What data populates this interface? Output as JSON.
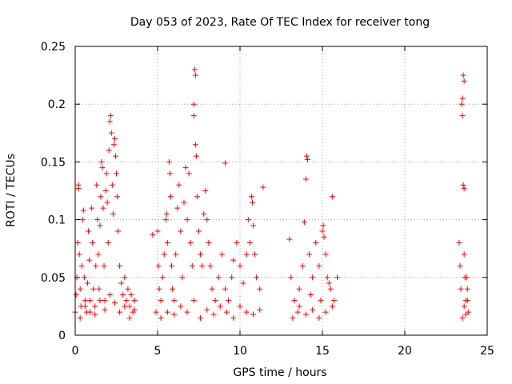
{
  "chart_data": {
    "type": "scatter",
    "title": "Day 053 of 2023, Rate Of TEC Index for receiver tong",
    "xlabel": "GPS time / hours",
    "ylabel": "ROTI / TECUs",
    "xlim": [
      0,
      25
    ],
    "ylim": [
      0,
      0.25
    ],
    "xticks": [
      "0",
      "5",
      "10",
      "15",
      "20",
      "25"
    ],
    "yticks": [
      "0",
      "0.05",
      "0.1",
      "0.15",
      "0.2",
      "0.25"
    ],
    "grid": true,
    "marker": "+",
    "color": "#ff0000",
    "points": [
      [
        0.0,
        0.02
      ],
      [
        0.05,
        0.035
      ],
      [
        0.1,
        0.05
      ],
      [
        0.15,
        0.08
      ],
      [
        0.2,
        0.13
      ],
      [
        0.2,
        0.127
      ],
      [
        0.25,
        0.07
      ],
      [
        0.3,
        0.04
      ],
      [
        0.35,
        0.025
      ],
      [
        0.4,
        0.06
      ],
      [
        0.45,
        0.1
      ],
      [
        0.5,
        0.108
      ],
      [
        0.55,
        0.05
      ],
      [
        0.6,
        0.03
      ],
      [
        0.7,
        0.02
      ],
      [
        0.75,
        0.045
      ],
      [
        0.8,
        0.09
      ],
      [
        0.85,
        0.065
      ],
      [
        0.9,
        0.03
      ],
      [
        1.0,
        0.11
      ],
      [
        1.05,
        0.08
      ],
      [
        1.1,
        0.04
      ],
      [
        1.2,
        0.025
      ],
      [
        1.25,
        0.06
      ],
      [
        1.3,
        0.13
      ],
      [
        1.35,
        0.1
      ],
      [
        1.4,
        0.07
      ],
      [
        1.45,
        0.04
      ],
      [
        1.5,
        0.095
      ],
      [
        1.55,
        0.12
      ],
      [
        1.6,
        0.15
      ],
      [
        1.65,
        0.145
      ],
      [
        1.7,
        0.11
      ],
      [
        1.75,
        0.06
      ],
      [
        1.8,
        0.03
      ],
      [
        1.85,
        0.125
      ],
      [
        1.9,
        0.14
      ],
      [
        1.95,
        0.115
      ],
      [
        2.0,
        0.08
      ],
      [
        2.05,
        0.16
      ],
      [
        2.1,
        0.185
      ],
      [
        2.15,
        0.19
      ],
      [
        2.2,
        0.175
      ],
      [
        2.25,
        0.13
      ],
      [
        2.3,
        0.105
      ],
      [
        2.35,
        0.165
      ],
      [
        2.4,
        0.17
      ],
      [
        2.45,
        0.155
      ],
      [
        2.5,
        0.14
      ],
      [
        2.55,
        0.12
      ],
      [
        2.6,
        0.09
      ],
      [
        2.7,
        0.06
      ],
      [
        2.8,
        0.045
      ],
      [
        2.9,
        0.035
      ],
      [
        3.0,
        0.05
      ],
      [
        3.1,
        0.03
      ],
      [
        3.2,
        0.04
      ],
      [
        3.3,
        0.025
      ],
      [
        3.4,
        0.035
      ],
      [
        3.5,
        0.02
      ],
      [
        3.6,
        0.03
      ],
      [
        0.3,
        0.015
      ],
      [
        0.6,
        0.025
      ],
      [
        0.9,
        0.02
      ],
      [
        1.2,
        0.018
      ],
      [
        1.5,
        0.03
      ],
      [
        1.8,
        0.022
      ],
      [
        2.1,
        0.035
      ],
      [
        2.4,
        0.028
      ],
      [
        2.7,
        0.02
      ],
      [
        3.0,
        0.025
      ],
      [
        3.3,
        0.015
      ],
      [
        3.6,
        0.022
      ],
      [
        4.7,
        0.087
      ],
      [
        4.9,
        0.02
      ],
      [
        5.0,
        0.09
      ],
      [
        5.05,
        0.06
      ],
      [
        5.1,
        0.04
      ],
      [
        5.2,
        0.03
      ],
      [
        5.3,
        0.05
      ],
      [
        5.4,
        0.07
      ],
      [
        5.5,
        0.1
      ],
      [
        5.55,
        0.105
      ],
      [
        5.6,
        0.08
      ],
      [
        5.7,
        0.15
      ],
      [
        5.75,
        0.14
      ],
      [
        5.8,
        0.12
      ],
      [
        5.85,
        0.06
      ],
      [
        5.9,
        0.04
      ],
      [
        6.0,
        0.03
      ],
      [
        6.1,
        0.07
      ],
      [
        6.2,
        0.11
      ],
      [
        6.3,
        0.13
      ],
      [
        6.4,
        0.09
      ],
      [
        6.5,
        0.05
      ],
      [
        6.6,
        0.115
      ],
      [
        6.7,
        0.145
      ],
      [
        6.8,
        0.1
      ],
      [
        6.9,
        0.14
      ],
      [
        7.0,
        0.08
      ],
      [
        7.1,
        0.06
      ],
      [
        7.2,
        0.19
      ],
      [
        7.2,
        0.2
      ],
      [
        7.25,
        0.23
      ],
      [
        7.3,
        0.225
      ],
      [
        7.3,
        0.165
      ],
      [
        7.35,
        0.155
      ],
      [
        7.4,
        0.12
      ],
      [
        7.5,
        0.09
      ],
      [
        7.6,
        0.07
      ],
      [
        7.7,
        0.06
      ],
      [
        7.8,
        0.105
      ],
      [
        7.9,
        0.125
      ],
      [
        8.0,
        0.1
      ],
      [
        8.1,
        0.08
      ],
      [
        8.2,
        0.06
      ],
      [
        8.3,
        0.04
      ],
      [
        8.5,
        0.03
      ],
      [
        8.7,
        0.05
      ],
      [
        8.9,
        0.07
      ],
      [
        9.1,
        0.04
      ],
      [
        9.3,
        0.03
      ],
      [
        9.5,
        0.05
      ],
      [
        9.6,
        0.065
      ],
      [
        9.8,
        0.08
      ],
      [
        10.0,
        0.06
      ],
      [
        10.2,
        0.045
      ],
      [
        10.4,
        0.07
      ],
      [
        10.5,
        0.1
      ],
      [
        10.6,
        0.08
      ],
      [
        10.7,
        0.12
      ],
      [
        10.75,
        0.115
      ],
      [
        10.8,
        0.095
      ],
      [
        10.9,
        0.07
      ],
      [
        11.0,
        0.05
      ],
      [
        11.2,
        0.04
      ],
      [
        11.4,
        0.128
      ],
      [
        5.2,
        0.015
      ],
      [
        5.6,
        0.02
      ],
      [
        6.0,
        0.018
      ],
      [
        6.4,
        0.025
      ],
      [
        6.8,
        0.02
      ],
      [
        7.2,
        0.03
      ],
      [
        7.6,
        0.015
      ],
      [
        8.0,
        0.022
      ],
      [
        8.4,
        0.018
      ],
      [
        8.8,
        0.025
      ],
      [
        9.2,
        0.02
      ],
      [
        9.6,
        0.015
      ],
      [
        10.0,
        0.025
      ],
      [
        10.4,
        0.02
      ],
      [
        10.8,
        0.018
      ],
      [
        11.2,
        0.022
      ],
      [
        9.1,
        0.149
      ],
      [
        13.0,
        0.083
      ],
      [
        13.1,
        0.05
      ],
      [
        13.3,
        0.03
      ],
      [
        13.5,
        0.02
      ],
      [
        13.6,
        0.04
      ],
      [
        13.8,
        0.06
      ],
      [
        13.9,
        0.098
      ],
      [
        14.0,
        0.135
      ],
      [
        14.05,
        0.155
      ],
      [
        14.1,
        0.152
      ],
      [
        14.2,
        0.07
      ],
      [
        14.4,
        0.05
      ],
      [
        14.6,
        0.08
      ],
      [
        14.8,
        0.06
      ],
      [
        15.0,
        0.09
      ],
      [
        15.05,
        0.095
      ],
      [
        15.1,
        0.085
      ],
      [
        15.2,
        0.07
      ],
      [
        15.3,
        0.05
      ],
      [
        15.5,
        0.04
      ],
      [
        15.6,
        0.12
      ],
      [
        15.7,
        0.03
      ],
      [
        15.9,
        0.05
      ],
      [
        13.2,
        0.015
      ],
      [
        13.6,
        0.025
      ],
      [
        14.0,
        0.018
      ],
      [
        14.4,
        0.022
      ],
      [
        14.8,
        0.015
      ],
      [
        15.2,
        0.02
      ],
      [
        15.6,
        0.025
      ],
      [
        14.3,
        0.035
      ],
      [
        14.9,
        0.03
      ],
      [
        15.4,
        0.045
      ],
      [
        23.3,
        0.08
      ],
      [
        23.35,
        0.06
      ],
      [
        23.4,
        0.04
      ],
      [
        23.45,
        0.2
      ],
      [
        23.5,
        0.19
      ],
      [
        23.5,
        0.205
      ],
      [
        23.55,
        0.225
      ],
      [
        23.6,
        0.22
      ],
      [
        23.55,
        0.13
      ],
      [
        23.6,
        0.127
      ],
      [
        23.6,
        0.07
      ],
      [
        23.65,
        0.05
      ],
      [
        23.7,
        0.03
      ],
      [
        23.75,
        0.05
      ],
      [
        23.8,
        0.04
      ],
      [
        23.85,
        0.02
      ],
      [
        23.5,
        0.015
      ],
      [
        23.6,
        0.025
      ],
      [
        23.7,
        0.018
      ],
      [
        23.8,
        0.03
      ]
    ]
  }
}
